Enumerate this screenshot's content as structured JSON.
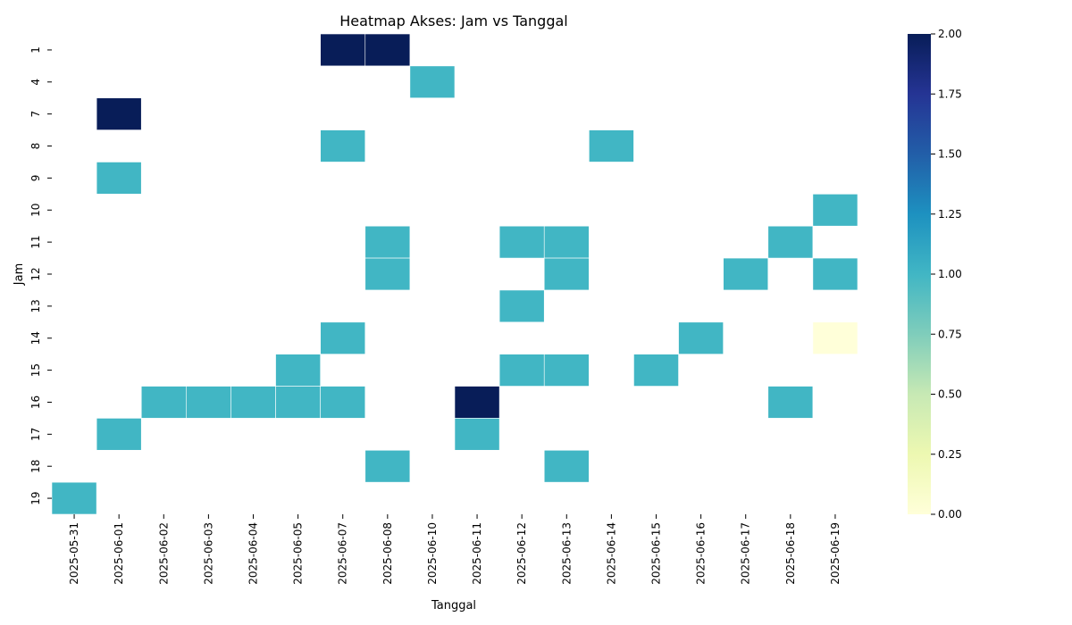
{
  "chart_data": {
    "type": "heatmap",
    "title": "Heatmap Akses: Jam vs Tanggal",
    "xlabel": "Tanggal",
    "ylabel": "Jam",
    "x_categories": [
      "2025-05-31",
      "2025-06-01",
      "2025-06-02",
      "2025-06-03",
      "2025-06-04",
      "2025-06-05",
      "2025-06-07",
      "2025-06-08",
      "2025-06-10",
      "2025-06-11",
      "2025-06-12",
      "2025-06-13",
      "2025-06-14",
      "2025-06-15",
      "2025-06-16",
      "2025-06-17",
      "2025-06-18",
      "2025-06-19"
    ],
    "y_categories": [
      "1",
      "4",
      "7",
      "8",
      "9",
      "10",
      "11",
      "12",
      "13",
      "14",
      "15",
      "16",
      "17",
      "18",
      "19"
    ],
    "values": [
      [
        null,
        null,
        null,
        null,
        null,
        null,
        2,
        2,
        null,
        null,
        null,
        null,
        null,
        null,
        null,
        null,
        null,
        null
      ],
      [
        null,
        null,
        null,
        null,
        null,
        null,
        null,
        null,
        1,
        null,
        null,
        null,
        null,
        null,
        null,
        null,
        null,
        null
      ],
      [
        null,
        2,
        null,
        null,
        null,
        null,
        null,
        null,
        null,
        null,
        null,
        null,
        null,
        null,
        null,
        null,
        null,
        null
      ],
      [
        null,
        null,
        null,
        null,
        null,
        null,
        1,
        null,
        null,
        null,
        null,
        null,
        1,
        null,
        null,
        null,
        null,
        null
      ],
      [
        null,
        1,
        null,
        null,
        null,
        null,
        null,
        null,
        null,
        null,
        null,
        null,
        null,
        null,
        null,
        null,
        null,
        null
      ],
      [
        null,
        null,
        null,
        null,
        null,
        null,
        null,
        null,
        null,
        null,
        null,
        null,
        null,
        null,
        null,
        null,
        null,
        1
      ],
      [
        null,
        null,
        null,
        null,
        null,
        null,
        null,
        1,
        null,
        null,
        1,
        1,
        null,
        null,
        null,
        null,
        1,
        null
      ],
      [
        null,
        null,
        null,
        null,
        null,
        null,
        null,
        1,
        null,
        null,
        null,
        1,
        null,
        null,
        null,
        1,
        null,
        1
      ],
      [
        null,
        null,
        null,
        null,
        null,
        null,
        null,
        null,
        null,
        null,
        1,
        null,
        null,
        null,
        null,
        null,
        null,
        null
      ],
      [
        null,
        null,
        null,
        null,
        null,
        null,
        1,
        null,
        null,
        null,
        null,
        null,
        null,
        null,
        1,
        null,
        null,
        0
      ],
      [
        null,
        null,
        null,
        null,
        null,
        1,
        null,
        null,
        null,
        null,
        1,
        1,
        null,
        1,
        null,
        null,
        null,
        null
      ],
      [
        null,
        null,
        1,
        1,
        1,
        1,
        1,
        null,
        null,
        2,
        null,
        null,
        null,
        null,
        null,
        null,
        1,
        null
      ],
      [
        null,
        1,
        null,
        null,
        null,
        null,
        null,
        null,
        null,
        1,
        null,
        null,
        null,
        null,
        null,
        null,
        null,
        null
      ],
      [
        null,
        null,
        null,
        null,
        null,
        null,
        null,
        1,
        null,
        null,
        null,
        1,
        null,
        null,
        null,
        null,
        null,
        null
      ],
      [
        1,
        null,
        null,
        null,
        null,
        null,
        null,
        null,
        null,
        null,
        null,
        null,
        null,
        null,
        null,
        null,
        null,
        null
      ]
    ],
    "colormap": "YlGnBu",
    "colorbar": {
      "range": [
        0,
        2
      ],
      "ticks": [
        "0.00",
        "0.25",
        "0.50",
        "0.75",
        "1.00",
        "1.25",
        "1.50",
        "1.75",
        "2.00"
      ]
    },
    "colors": {
      "value_0": "#ffffd9",
      "value_1": "#41b6c4",
      "value_2": "#081d58"
    },
    "grid": false,
    "cell_borders": "white"
  }
}
